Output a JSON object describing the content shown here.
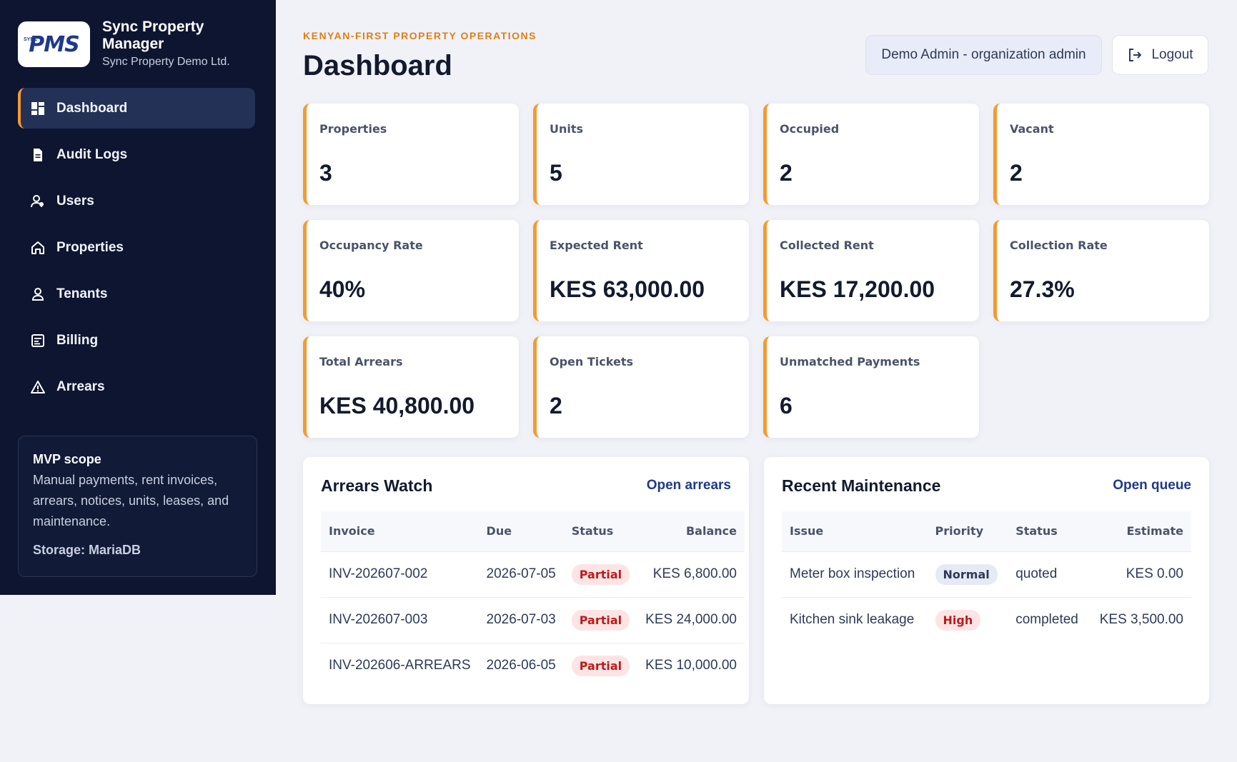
{
  "brand": {
    "logo_text_a": "PMS",
    "logo_sub": "SYNC",
    "title": "Sync Property Manager",
    "org": "Sync Property Demo Ltd."
  },
  "nav": {
    "items": [
      {
        "label": "Dashboard",
        "icon": "dashboard-icon"
      },
      {
        "label": "Audit Logs",
        "icon": "document-icon"
      },
      {
        "label": "Users",
        "icon": "users-icon"
      },
      {
        "label": "Properties",
        "icon": "home-icon"
      },
      {
        "label": "Tenants",
        "icon": "person-icon"
      },
      {
        "label": "Billing",
        "icon": "billing-icon"
      },
      {
        "label": "Arrears",
        "icon": "warning-icon"
      }
    ]
  },
  "scope": {
    "title": "MVP scope",
    "description": "Manual payments, rent invoices, arrears, notices, units, leases, and maintenance.",
    "storage": "Storage: MariaDB"
  },
  "header": {
    "eyebrow": "KENYAN-FIRST PROPERTY OPERATIONS",
    "title": "Dashboard",
    "user": "Demo Admin - organization admin",
    "logout": "Logout"
  },
  "stats": [
    {
      "label": "Properties",
      "value": "3"
    },
    {
      "label": "Units",
      "value": "5"
    },
    {
      "label": "Occupied",
      "value": "2"
    },
    {
      "label": "Vacant",
      "value": "2"
    },
    {
      "label": "Occupancy Rate",
      "value": "40%"
    },
    {
      "label": "Expected Rent",
      "value": "KES 63,000.00"
    },
    {
      "label": "Collected Rent",
      "value": "KES 17,200.00"
    },
    {
      "label": "Collection Rate",
      "value": "27.3%"
    },
    {
      "label": "Total Arrears",
      "value": "KES 40,800.00"
    },
    {
      "label": "Open Tickets",
      "value": "2"
    },
    {
      "label": "Unmatched Payments",
      "value": "6"
    }
  ],
  "arrears": {
    "title": "Arrears Watch",
    "link": "Open arrears",
    "columns": [
      "Invoice",
      "Due",
      "Status",
      "Balance"
    ],
    "rows": [
      {
        "invoice": "INV-202607-002",
        "due": "2026-07-05",
        "status": "Partial",
        "balance": "KES 6,800.00"
      },
      {
        "invoice": "INV-202607-003",
        "due": "2026-07-03",
        "status": "Partial",
        "balance": "KES 24,000.00"
      },
      {
        "invoice": "INV-202606-ARREARS",
        "due": "2026-06-05",
        "status": "Partial",
        "balance": "KES 10,000.00"
      }
    ]
  },
  "maintenance": {
    "title": "Recent Maintenance",
    "link": "Open queue",
    "columns": [
      "Issue",
      "Priority",
      "Status",
      "Estimate"
    ],
    "rows": [
      {
        "issue": "Meter box inspection",
        "priority": "Normal",
        "status": "quoted",
        "estimate": "KES 0.00"
      },
      {
        "issue": "Kitchen sink leakage",
        "priority": "High",
        "status": "completed",
        "estimate": "KES 3,500.00"
      }
    ]
  },
  "colors": {
    "sidebar_bg": "#0e1530",
    "accent": "#f59a2f",
    "link": "#1e3a8a",
    "danger": "#b91c1c"
  }
}
